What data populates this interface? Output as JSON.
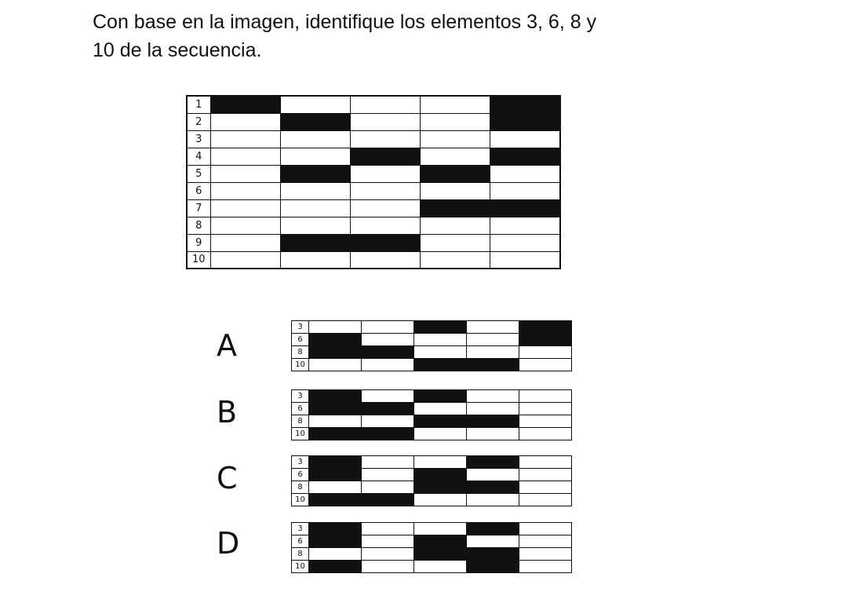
{
  "question": {
    "line1": "Con base en la imagen, identifique los elementos 3, 6, 8 y",
    "line2": "10 de la secuencia."
  },
  "main_grid": {
    "rows": [
      {
        "label": "1",
        "cells": [
          1,
          0,
          0,
          0,
          1
        ]
      },
      {
        "label": "2",
        "cells": [
          0,
          1,
          0,
          0,
          1
        ]
      },
      {
        "label": "3",
        "cells": [
          0,
          0,
          0,
          0,
          0
        ]
      },
      {
        "label": "4",
        "cells": [
          0,
          0,
          1,
          0,
          1
        ]
      },
      {
        "label": "5",
        "cells": [
          0,
          1,
          0,
          1,
          0
        ]
      },
      {
        "label": "6",
        "cells": [
          0,
          0,
          0,
          0,
          0
        ]
      },
      {
        "label": "7",
        "cells": [
          0,
          0,
          0,
          1,
          1
        ]
      },
      {
        "label": "8",
        "cells": [
          0,
          0,
          0,
          0,
          0
        ]
      },
      {
        "label": "9",
        "cells": [
          0,
          1,
          1,
          0,
          0
        ]
      },
      {
        "label": "10",
        "cells": [
          0,
          0,
          0,
          0,
          0
        ]
      }
    ]
  },
  "options": [
    {
      "letter": "A",
      "rows": [
        {
          "label": "3",
          "cells": [
            0,
            0,
            1,
            0,
            1
          ]
        },
        {
          "label": "6",
          "cells": [
            1,
            0,
            0,
            0,
            1
          ]
        },
        {
          "label": "8",
          "cells": [
            1,
            1,
            0,
            0,
            0
          ]
        },
        {
          "label": "10",
          "cells": [
            0,
            0,
            1,
            1,
            0
          ]
        }
      ]
    },
    {
      "letter": "B",
      "rows": [
        {
          "label": "3",
          "cells": [
            1,
            0,
            1,
            0,
            0
          ]
        },
        {
          "label": "6",
          "cells": [
            1,
            1,
            0,
            0,
            0
          ]
        },
        {
          "label": "8",
          "cells": [
            0,
            0,
            1,
            1,
            0
          ]
        },
        {
          "label": "10",
          "cells": [
            1,
            1,
            0,
            0,
            0
          ]
        }
      ]
    },
    {
      "letter": "C",
      "rows": [
        {
          "label": "3",
          "cells": [
            1,
            0,
            0,
            1,
            0
          ]
        },
        {
          "label": "6",
          "cells": [
            1,
            0,
            1,
            0,
            0
          ]
        },
        {
          "label": "8",
          "cells": [
            0,
            0,
            1,
            1,
            0
          ]
        },
        {
          "label": "10",
          "cells": [
            1,
            1,
            0,
            0,
            0
          ]
        }
      ]
    },
    {
      "letter": "D",
      "rows": [
        {
          "label": "3",
          "cells": [
            1,
            0,
            0,
            1,
            0
          ]
        },
        {
          "label": "6",
          "cells": [
            1,
            0,
            1,
            0,
            0
          ]
        },
        {
          "label": "8",
          "cells": [
            0,
            0,
            1,
            1,
            0
          ]
        },
        {
          "label": "10",
          "cells": [
            1,
            0,
            0,
            1,
            0
          ]
        }
      ]
    }
  ]
}
